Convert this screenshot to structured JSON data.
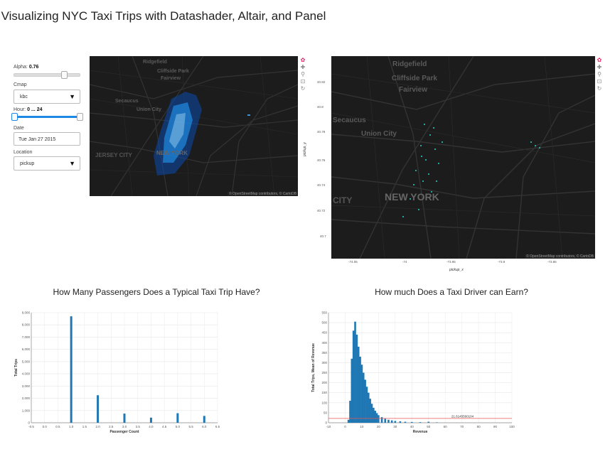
{
  "page": {
    "title": "Visualizing NYC Taxi Trips with Datashader, Altair, and Panel"
  },
  "controls": {
    "alpha_label": "Alpha:",
    "alpha_value": "0.76",
    "alpha_fraction": 0.76,
    "cmap_label": "Cmap",
    "cmap_value": "kbc",
    "hour_label": "Hour:",
    "hour_value": "0 ... 24",
    "hour_range": [
      0,
      24
    ],
    "date_label": "Date",
    "date_value": "Tue Jan 27 2015",
    "location_label": "Location",
    "location_value": "pickup"
  },
  "map_small": {
    "labels": [
      "Ridgefield",
      "Cliffside Park",
      "Fairview",
      "Secaucus",
      "Union City",
      "JERSEY CITY",
      "NEW YORK"
    ],
    "attribution": "© OpenStreetMap contributors, © CartoDB"
  },
  "map_large": {
    "labels": [
      "Ridgefield",
      "Cliffside Park",
      "Fairview",
      "Secaucus",
      "Union City",
      "CITY",
      "NEW YORK"
    ],
    "attribution": "© OpenStreetMap contributors, © CartoDB",
    "ylabel": "pickup_y",
    "xlabel": "pickup_x",
    "yticks": [
      "40.82",
      "40.8",
      "40.78",
      "40.76",
      "40.74",
      "40.72",
      "40.7"
    ],
    "xticks": [
      "-74.05",
      "-74",
      "-73.95",
      "-73.9",
      "-73.85"
    ]
  },
  "toolbar_icons": [
    "bokeh-logo-icon",
    "pan-icon",
    "wheel-zoom-icon",
    "box-zoom-icon",
    "reset-icon"
  ],
  "chart_data": [
    {
      "type": "bar",
      "title": "How Many Passengers Does a Typical Taxi Trip Have?",
      "xlabel": "Passenger Count",
      "ylabel": "Total Trips",
      "xlim": [
        -0.5,
        6.5
      ],
      "ylim": [
        0,
        9000
      ],
      "xticks": [
        "-0.5",
        "0.0",
        "0.5",
        "1.0",
        "1.5",
        "2.0",
        "2.5",
        "3.0",
        "3.5",
        "4.0",
        "4.5",
        "5.0",
        "5.5",
        "6.0",
        "6.5"
      ],
      "yticks": [
        "0",
        "1,000",
        "2,000",
        "3,000",
        "4,000",
        "5,000",
        "6,000",
        "7,000",
        "8,000",
        "9,000"
      ],
      "categories": [
        1,
        2,
        3,
        4,
        5,
        6
      ],
      "values": [
        8700,
        2250,
        750,
        420,
        780,
        560
      ],
      "color": "#1f77b4"
    },
    {
      "type": "bar",
      "title": "How much Does a Taxi Driver can Earn?",
      "xlabel": "Revenue",
      "ylabel": "Total Trips, Mean of Revenue",
      "xlim": [
        -10,
        100
      ],
      "ylim": [
        0,
        550
      ],
      "xticks": [
        "-10",
        "0",
        "10",
        "20",
        "30",
        "40",
        "50",
        "60",
        "70",
        "80",
        "90",
        "100"
      ],
      "yticks": [
        "0",
        "50",
        "100",
        "150",
        "200",
        "250",
        "300",
        "350",
        "400",
        "450",
        "500",
        "550"
      ],
      "x": [
        2,
        3,
        4,
        5,
        6,
        7,
        8,
        9,
        10,
        11,
        12,
        13,
        14,
        15,
        16,
        17,
        18,
        19,
        20,
        22,
        24,
        26,
        28,
        30,
        33,
        36,
        40,
        45,
        50,
        55
      ],
      "values": [
        15,
        110,
        320,
        460,
        505,
        440,
        380,
        330,
        290,
        250,
        215,
        180,
        150,
        120,
        95,
        75,
        60,
        48,
        38,
        28,
        20,
        15,
        12,
        9,
        7,
        5,
        4,
        3,
        5,
        2
      ],
      "mean_line": 21.6145560104,
      "mean_label": "21.6145560104",
      "color": "#1f77b4",
      "mean_color": "#e45756"
    }
  ]
}
